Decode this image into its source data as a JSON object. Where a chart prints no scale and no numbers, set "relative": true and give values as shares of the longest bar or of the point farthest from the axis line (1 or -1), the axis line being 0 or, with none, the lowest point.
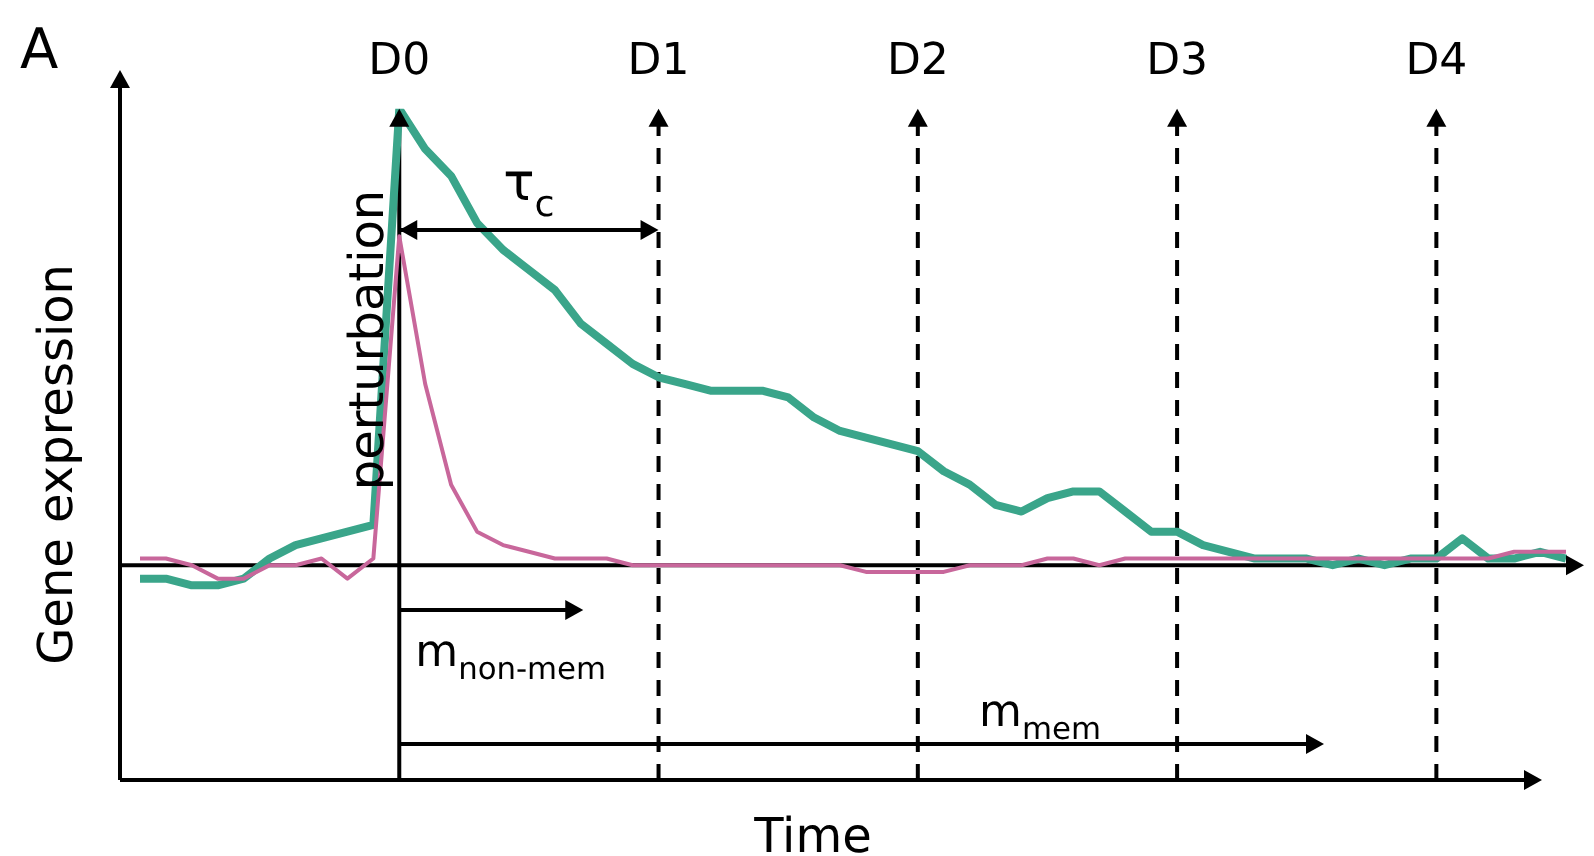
{
  "chart_data": {
    "type": "line",
    "relative": true,
    "xlabel": "Time",
    "ylabel": "Gene expression",
    "categories": [
      null,
      null,
      null,
      null,
      null,
      null,
      null,
      null,
      null,
      null,
      "D0",
      null,
      null,
      null,
      null,
      null,
      null,
      null,
      null,
      null,
      "D1",
      null,
      null,
      null,
      null,
      null,
      null,
      null,
      null,
      null,
      "D2",
      null,
      null,
      null,
      null,
      null,
      null,
      null,
      null,
      null,
      "D3",
      null,
      null,
      null,
      null,
      null,
      null,
      null,
      null,
      null,
      "D4",
      null,
      null,
      null,
      null,
      null
    ],
    "series": [
      {
        "color": "#c8679b",
        "values": [
          0.33,
          0.33,
          0.32,
          0.3,
          0.3,
          0.32,
          0.32,
          0.33,
          0.3,
          0.33,
          0.81,
          0.59,
          0.44,
          0.37,
          0.35,
          0.34,
          0.33,
          0.33,
          0.33,
          0.32,
          0.32,
          0.32,
          0.32,
          0.32,
          0.32,
          0.32,
          0.32,
          0.32,
          0.31,
          0.31,
          0.31,
          0.31,
          0.32,
          0.32,
          0.32,
          0.33,
          0.33,
          0.32,
          0.33,
          0.33,
          0.33,
          0.33,
          0.33,
          0.33,
          0.33,
          0.33,
          0.33,
          0.33,
          0.33,
          0.33,
          0.33,
          0.33,
          0.33,
          0.34,
          0.34,
          0.34
        ]
      },
      {
        "color": "#3aa58a",
        "values": [
          0.3,
          0.3,
          0.29,
          0.29,
          0.3,
          0.33,
          0.35,
          0.36,
          0.37,
          0.38,
          1.0,
          0.94,
          0.9,
          0.83,
          0.79,
          0.76,
          0.73,
          0.68,
          0.65,
          0.62,
          0.6,
          0.59,
          0.58,
          0.58,
          0.58,
          0.57,
          0.54,
          0.52,
          0.51,
          0.5,
          0.49,
          0.46,
          0.44,
          0.41,
          0.4,
          0.42,
          0.43,
          0.43,
          0.4,
          0.37,
          0.37,
          0.35,
          0.34,
          0.33,
          0.33,
          0.33,
          0.32,
          0.33,
          0.32,
          0.33,
          0.33,
          0.36,
          0.33,
          0.33,
          0.34,
          0.33
        ]
      }
    ],
    "ref_lines": [
      {
        "axis": "y",
        "value": 0.32
      },
      {
        "axis": "x",
        "value": "D0",
        "line_style": "solid"
      },
      {
        "axis": "x",
        "value": "D1",
        "line_style": "dashed"
      },
      {
        "axis": "x",
        "value": "D2",
        "line_style": "dashed"
      },
      {
        "axis": "x",
        "value": "D3",
        "line_style": "dashed"
      },
      {
        "axis": "x",
        "value": "D4",
        "line_style": "dashed"
      }
    ],
    "annotations": [
      "A",
      "perturbation",
      "τ$_{c}$",
      "m$_{non-mem}$",
      "m$_{mem}$"
    ],
    "legend": false,
    "grid": false,
    "marker": "none",
    "line_style": "solid"
  }
}
